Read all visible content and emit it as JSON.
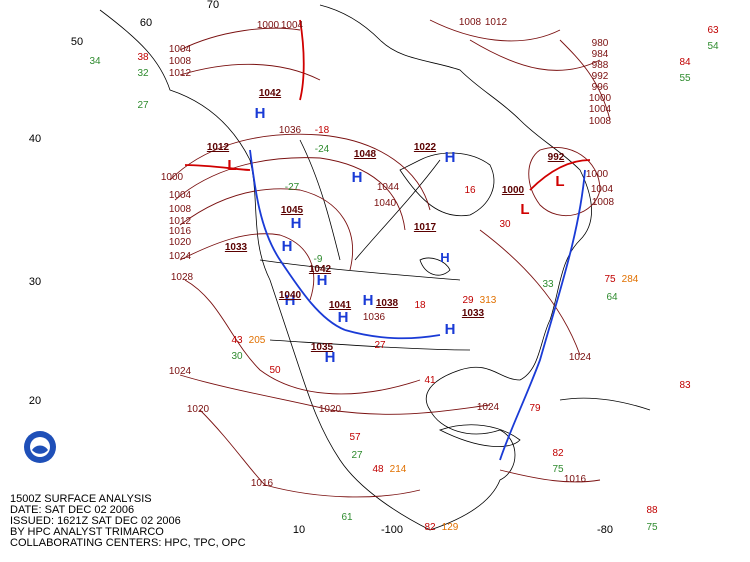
{
  "caption": {
    "lines": [
      "1500Z SURFACE ANALYSIS",
      "DATE: SAT DEC 02 2006",
      "ISSUED: 1621Z SAT DEC 02 2006",
      "BY HPC ANALYST TRIMARCO",
      "COLLABORATING CENTERS: HPC, TPC, OPC"
    ]
  },
  "grid_labels": [
    "60",
    "70",
    "50",
    "40",
    "30",
    "20",
    "10",
    "-100",
    "-80"
  ],
  "pressure_systems": [
    {
      "symbol": "H",
      "pressure": 1042
    },
    {
      "symbol": "H",
      "pressure": 1048
    },
    {
      "symbol": "H",
      "pressure": 1022
    },
    {
      "symbol": "H",
      "pressure": 1045
    },
    {
      "symbol": "H",
      "pressure": 1033
    },
    {
      "symbol": "H",
      "pressure": 1042
    },
    {
      "symbol": "H",
      "pressure": 1040
    },
    {
      "symbol": "H",
      "pressure": 1038
    },
    {
      "symbol": "H",
      "pressure": 1033
    },
    {
      "symbol": "H",
      "pressure": 1035
    },
    {
      "symbol": "H",
      "pressure": 1041
    },
    {
      "symbol": "H",
      "pressure": 1017
    },
    {
      "symbol": "L",
      "pressure": 1012
    },
    {
      "symbol": "L",
      "pressure": 1000
    },
    {
      "symbol": "L",
      "pressure": 992
    }
  ],
  "isobar_labels": [
    1000,
    1004,
    1008,
    1012,
    1016,
    1020,
    1024,
    1028,
    1024,
    1020,
    1016,
    1020,
    1024,
    1024,
    1016,
    1000,
    1004,
    1008,
    1040,
    1044,
    1036,
    1036,
    1008,
    1012,
    1000,
    1004,
    1004,
    1008,
    1012,
    980,
    984,
    988,
    992,
    996,
    1000,
    1004,
    1008
  ],
  "stations": [
    {
      "text": "38",
      "color": "#c00000"
    },
    {
      "text": "34",
      "color": "#2e8b2e"
    },
    {
      "text": "32",
      "color": "#2e8b2e"
    },
    {
      "text": "27",
      "color": "#2e8b2e"
    },
    {
      "text": "63",
      "color": "#c00000"
    },
    {
      "text": "84",
      "color": "#c00000"
    },
    {
      "text": "54",
      "color": "#2e8b2e"
    },
    {
      "text": "55",
      "color": "#2e8b2e"
    },
    {
      "text": "75",
      "color": "#c00000"
    },
    {
      "text": "284",
      "color": "#e07000"
    },
    {
      "text": "64",
      "color": "#2e8b2e"
    },
    {
      "text": "83",
      "color": "#c00000"
    },
    {
      "text": "79",
      "color": "#c00000"
    },
    {
      "text": "82",
      "color": "#c00000"
    },
    {
      "text": "75",
      "color": "#2e8b2e"
    },
    {
      "text": "48",
      "color": "#c00000"
    },
    {
      "text": "214",
      "color": "#e07000"
    },
    {
      "text": "57",
      "color": "#c00000"
    },
    {
      "text": "27",
      "color": "#2e8b2e"
    },
    {
      "text": "43",
      "color": "#c00000"
    },
    {
      "text": "205",
      "color": "#e07000"
    },
    {
      "text": "30",
      "color": "#2e8b2e"
    },
    {
      "text": "50",
      "color": "#c00000"
    },
    {
      "text": "61",
      "color": "#2e8b2e"
    },
    {
      "text": "82",
      "color": "#c00000"
    },
    {
      "text": "129",
      "color": "#e07000"
    },
    {
      "text": "88",
      "color": "#c00000"
    },
    {
      "text": "75",
      "color": "#2e8b2e"
    },
    {
      "text": "-18",
      "color": "#c00000"
    },
    {
      "text": "-24",
      "color": "#2e8b2e"
    },
    {
      "text": "-27",
      "color": "#2e8b2e"
    },
    {
      "text": "-9",
      "color": "#2e8b2e"
    },
    {
      "text": "29",
      "color": "#c00000"
    },
    {
      "text": "313",
      "color": "#e07000"
    },
    {
      "text": "41",
      "color": "#c00000"
    },
    {
      "text": "18",
      "color": "#c00000"
    },
    {
      "text": "27",
      "color": "#c00000"
    },
    {
      "text": "30",
      "color": "#c00000"
    },
    {
      "text": "16",
      "color": "#c00000"
    },
    {
      "text": "33",
      "color": "#2e8b2e"
    }
  ]
}
